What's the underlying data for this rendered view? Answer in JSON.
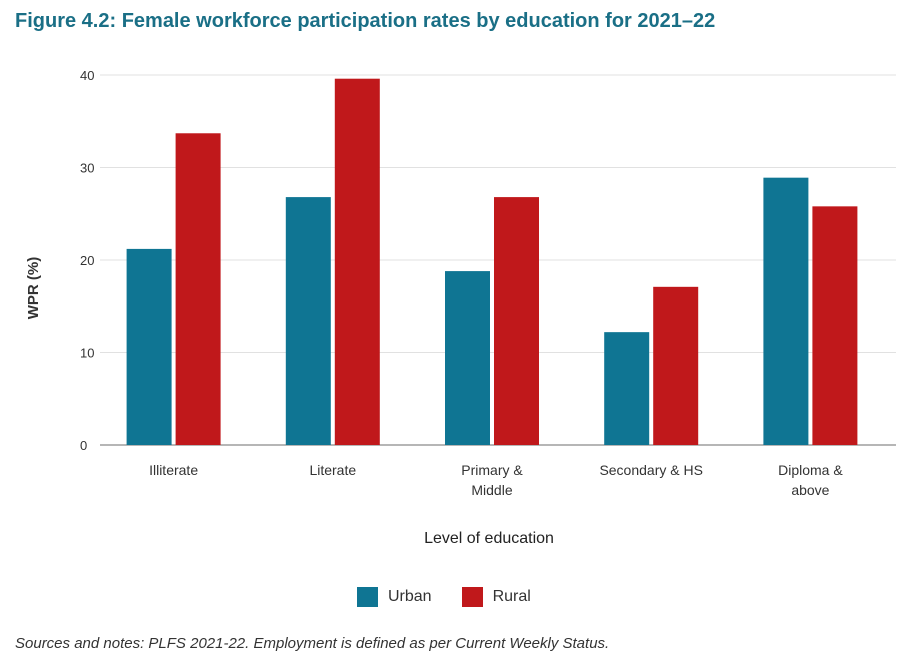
{
  "title": "Figure 4.2: Female workforce participation rates by education for 2021–22",
  "footnote": "Sources and notes: PLFS 2021-22. Employment is defined as per Current Weekly Status.",
  "chart_data": {
    "type": "bar",
    "categories": [
      [
        "Illiterate"
      ],
      [
        "Literate"
      ],
      [
        "Primary &",
        "Middle"
      ],
      [
        "Secondary & HS"
      ],
      [
        "Diploma &",
        "above"
      ]
    ],
    "series": [
      {
        "name": "Urban",
        "color": "#0f7593",
        "values": [
          21.2,
          26.8,
          18.8,
          12.2,
          28.9
        ]
      },
      {
        "name": "Rural",
        "color": "#c0181b",
        "values": [
          33.7,
          39.6,
          26.8,
          17.1,
          25.8
        ]
      }
    ],
    "xlabel": "Level of education",
    "ylabel": "WPR (%)",
    "ylim": [
      0,
      40
    ],
    "yticks": [
      0,
      10,
      20,
      30,
      40
    ],
    "grid": true,
    "legend_position": "bottom"
  }
}
